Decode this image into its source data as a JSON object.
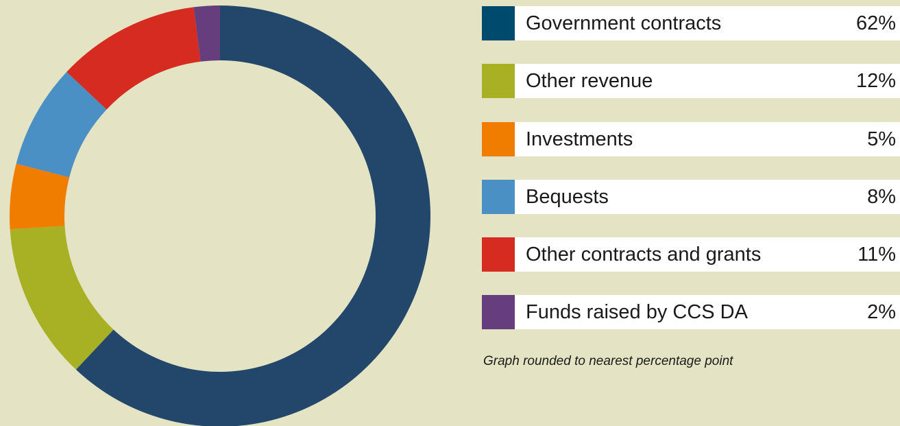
{
  "chart_data": {
    "type": "pie",
    "variant": "donut",
    "slices": [
      {
        "label": "Government contracts",
        "value": 62,
        "value_label": "62%",
        "color": "#22476a",
        "legend_color": "#004a6e"
      },
      {
        "label": "Other revenue",
        "value": 12,
        "value_label": "12%",
        "color": "#a8b024",
        "legend_color": "#a8b024"
      },
      {
        "label": "Investments",
        "value": 5,
        "value_label": "5%",
        "color": "#f07d00",
        "legend_color": "#f07d00"
      },
      {
        "label": "Bequests",
        "value": 8,
        "value_label": "8%",
        "color": "#4a90c4",
        "legend_color": "#4a90c4"
      },
      {
        "label": "Other contracts and grants",
        "value": 11,
        "value_label": "11%",
        "color": "#d62b20",
        "legend_color": "#d62b20"
      },
      {
        "label": "Funds raised by CCS DA",
        "value": 2,
        "value_label": "2%",
        "color": "#663d7d",
        "legend_color": "#663d7d"
      }
    ],
    "start_angle": "top",
    "direction": "clockwise",
    "legend_placement": "right"
  },
  "footnote": "Graph rounded to nearest percentage point",
  "background_color": "#e4e4c4"
}
